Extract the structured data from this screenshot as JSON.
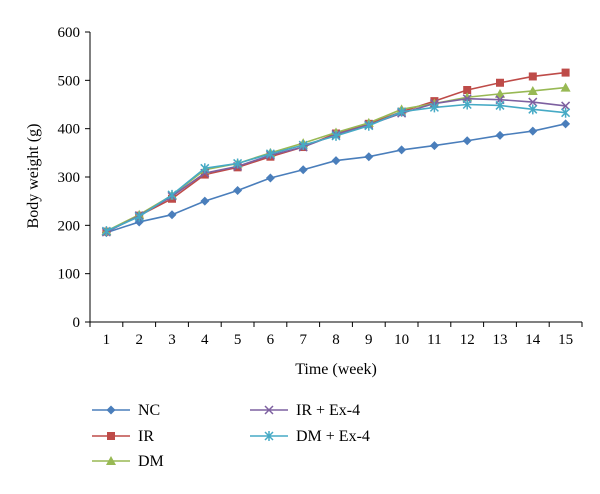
{
  "chart_data": {
    "type": "line",
    "title": "",
    "xlabel": "Time (week)",
    "ylabel": "Body weight (g)",
    "x": [
      1,
      2,
      3,
      4,
      5,
      6,
      7,
      8,
      9,
      10,
      11,
      12,
      13,
      14,
      15
    ],
    "ylim": [
      0,
      600
    ],
    "yticks": [
      0,
      100,
      200,
      300,
      400,
      500,
      600
    ],
    "grid": false,
    "legend_position": "bottom",
    "series": [
      {
        "name": "NC",
        "color": "#4a7ebb",
        "marker": "diamond",
        "values": [
          185,
          207,
          222,
          250,
          272,
          298,
          315,
          334,
          342,
          356,
          365,
          375,
          386,
          395,
          410
        ]
      },
      {
        "name": "IR",
        "color": "#be4b48",
        "marker": "square",
        "values": [
          187,
          220,
          255,
          305,
          320,
          342,
          362,
          390,
          410,
          435,
          457,
          480,
          495,
          508,
          516
        ]
      },
      {
        "name": "DM",
        "color": "#98b954",
        "marker": "triangle",
        "values": [
          188,
          222,
          262,
          315,
          328,
          350,
          370,
          392,
          412,
          440,
          452,
          465,
          472,
          478,
          485
        ]
      },
      {
        "name": "IR + Ex-4",
        "color": "#7d60a0",
        "marker": "x",
        "values": [
          186,
          220,
          260,
          308,
          322,
          345,
          362,
          388,
          408,
          432,
          452,
          462,
          460,
          455,
          447
        ]
      },
      {
        "name": "DM + Ex-4",
        "color": "#46aac5",
        "marker": "star",
        "values": [
          188,
          218,
          263,
          318,
          328,
          348,
          366,
          385,
          406,
          435,
          444,
          450,
          448,
          440,
          433
        ]
      }
    ]
  }
}
